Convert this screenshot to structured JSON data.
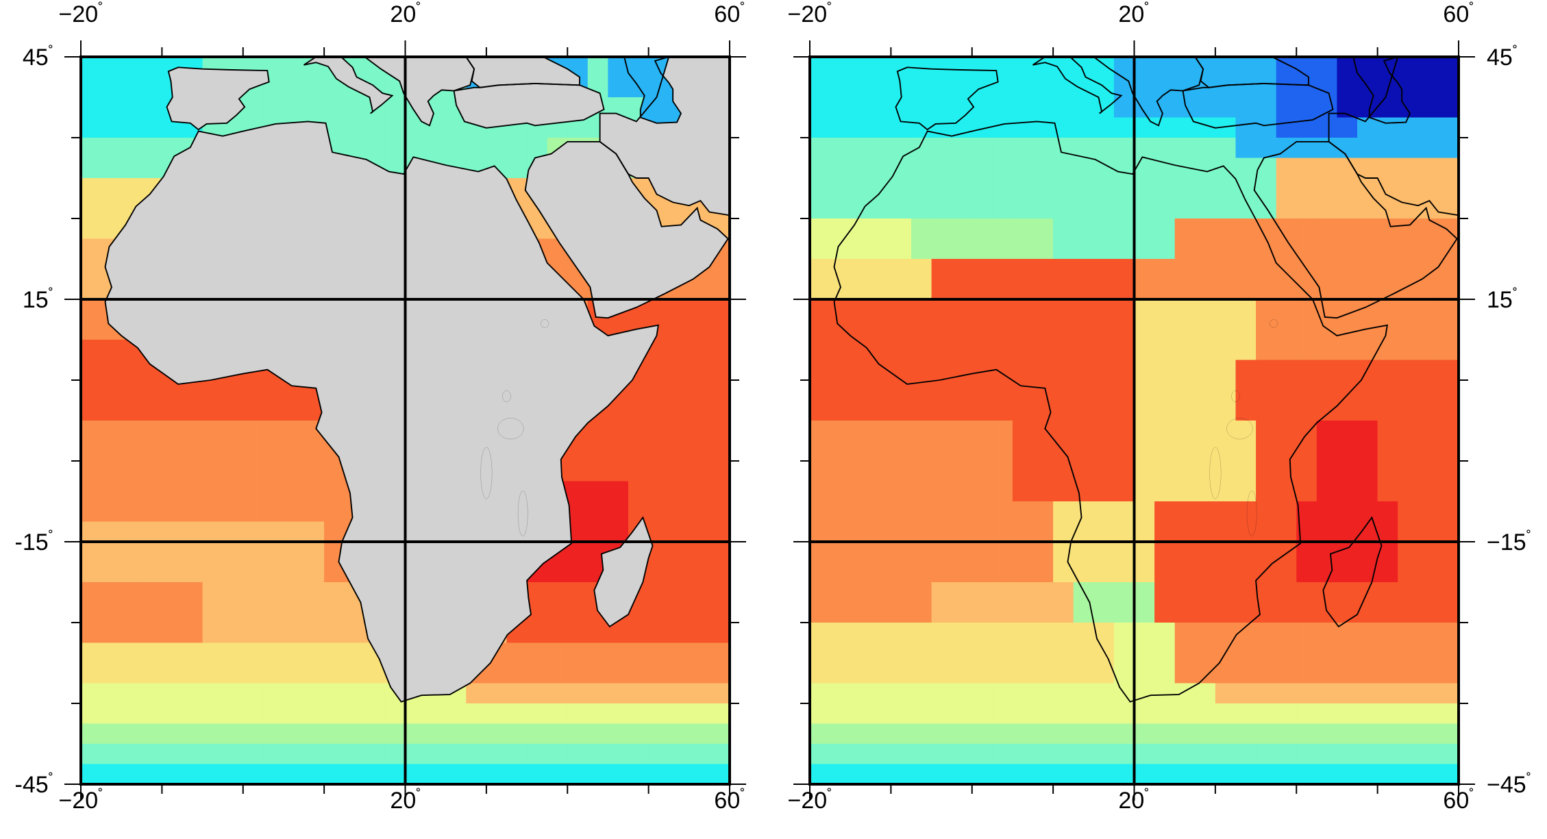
{
  "maps": [
    {
      "id": "left",
      "land_fill": "gray",
      "x_ticks": [
        {
          "lon": -20,
          "label": "−20",
          "unit": "˚"
        },
        {
          "lon": 20,
          "label": "20",
          "unit": "˚"
        },
        {
          "lon": 60,
          "label": "60",
          "unit": "˚"
        }
      ],
      "y_ticks": [
        {
          "lat": 45,
          "label": "45",
          "unit": "˚"
        },
        {
          "lat": 15,
          "label": "15",
          "unit": "˚"
        },
        {
          "lat": -15,
          "label": "-15",
          "unit": "˚"
        },
        {
          "lat": -45,
          "label": "-45",
          "unit": "˚"
        }
      ],
      "y_label_side": "left"
    },
    {
      "id": "right",
      "land_fill": "none",
      "x_ticks": [
        {
          "lon": -20,
          "label": "−20",
          "unit": "˚"
        },
        {
          "lon": 20,
          "label": "20",
          "unit": "˚"
        },
        {
          "lon": 60,
          "label": "60",
          "unit": "˚"
        }
      ],
      "y_ticks": [
        {
          "lat": 45,
          "label": "45",
          "unit": "˚"
        },
        {
          "lat": 15,
          "label": "15",
          "unit": "˚"
        },
        {
          "lat": -15,
          "label": "−15",
          "unit": "˚"
        },
        {
          "lat": -45,
          "label": "−45",
          "unit": "˚"
        }
      ],
      "y_label_side": "right"
    }
  ],
  "extent": {
    "lon_min": -20,
    "lon_max": 60,
    "lat_min": -45,
    "lat_max": 45
  },
  "palette": {
    "dark_blue": "#0a10b4",
    "blue": "#1e64f0",
    "sky": "#28b4f5",
    "cyan": "#22f0f0",
    "aqua": "#7bf7c8",
    "mint": "#aaf7a2",
    "lime": "#e6fb8c",
    "yellow": "#f9e27a",
    "light_orange": "#fcbc6b",
    "orange": "#fb8c4a",
    "red_orange": "#f7542a",
    "red": "#ef2222",
    "land_gray": "#d2d2d2"
  }
}
